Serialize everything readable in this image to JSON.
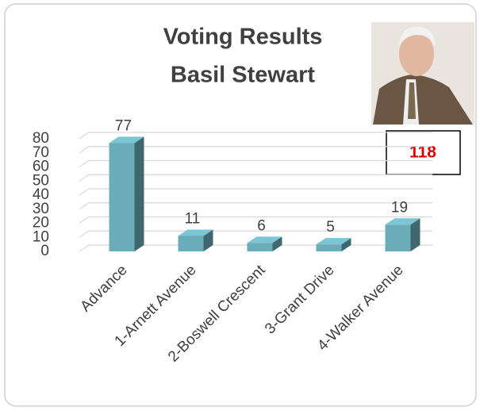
{
  "chart_data": {
    "type": "bar3d",
    "title": "Voting Results",
    "subtitle": "Basil Stewart",
    "categories": [
      "Advance",
      "1-Arnett Avenue",
      "2-Boswell Crescent",
      "3-Grant Drive",
      "4-Walker Avenue"
    ],
    "values": [
      77,
      11,
      6,
      5,
      19
    ],
    "color": "#6aacb8",
    "ylim": [
      0,
      80
    ],
    "yticks": [
      0,
      10,
      20,
      30,
      40,
      50,
      60,
      70,
      80
    ],
    "grid": true,
    "total": 118
  }
}
